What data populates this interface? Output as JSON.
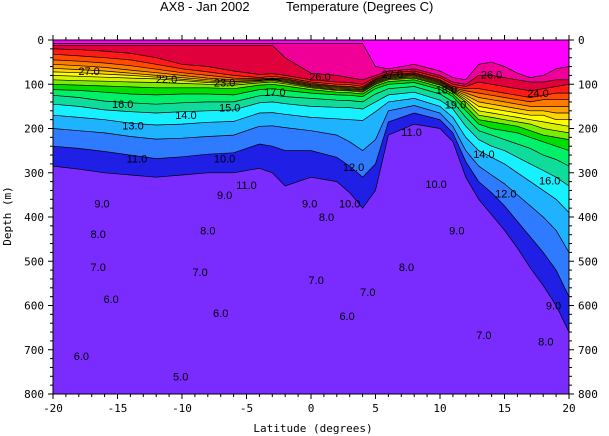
{
  "chart_data": {
    "type": "heatmap",
    "subtype": "filled-contour",
    "title": "AX8 - Jan 2002",
    "subtitle": "Temperature (Degrees C)",
    "xlabel": "Latitude (degrees)",
    "ylabel": "Depth (m)",
    "xlim": [
      -20,
      20
    ],
    "ylim": [
      0,
      800
    ],
    "y_inverted": true,
    "x_ticks": [
      -20,
      -15,
      -10,
      -5,
      0,
      5,
      10,
      15,
      20
    ],
    "y_ticks": [
      0,
      100,
      200,
      300,
      400,
      500,
      600,
      700,
      800
    ],
    "x_tick_labels": [
      "-20",
      "-15",
      "-10",
      "-5",
      "0",
      "5",
      "10",
      "15",
      "20"
    ],
    "y_tick_labels": [
      "0",
      "100",
      "200",
      "300",
      "400",
      "500",
      "600",
      "700",
      "800"
    ],
    "grid": false,
    "contour_levels": [
      5,
      6,
      7,
      8,
      9,
      10,
      11,
      12,
      13,
      14,
      15,
      16,
      17,
      18,
      19,
      20,
      21,
      22,
      23,
      24,
      25,
      26,
      27,
      28
    ],
    "color_bands": [
      {
        "min": 4,
        "max": 10,
        "color": "#7a2cff"
      },
      {
        "min": 10,
        "max": 11,
        "color": "#1f1fe6"
      },
      {
        "min": 11,
        "max": 12,
        "color": "#2f7bff"
      },
      {
        "min": 12,
        "max": 13,
        "color": "#1fb3ff"
      },
      {
        "min": 13,
        "max": 14,
        "color": "#17f0ff"
      },
      {
        "min": 14,
        "max": 15,
        "color": "#0fdc9a"
      },
      {
        "min": 15,
        "max": 16,
        "color": "#00f06a"
      },
      {
        "min": 16,
        "max": 17,
        "color": "#00dd00"
      },
      {
        "min": 17,
        "max": 18,
        "color": "#7aee00"
      },
      {
        "min": 18,
        "max": 19,
        "color": "#d7f200"
      },
      {
        "min": 19,
        "max": 20,
        "color": "#ffff00"
      },
      {
        "min": 20,
        "max": 21,
        "color": "#ffd200"
      },
      {
        "min": 21,
        "max": 22,
        "color": "#ffa200"
      },
      {
        "min": 22,
        "max": 23,
        "color": "#ff7a00"
      },
      {
        "min": 23,
        "max": 24,
        "color": "#ff4a00"
      },
      {
        "min": 24,
        "max": 25,
        "color": "#ff1a1a"
      },
      {
        "min": 25,
        "max": 26,
        "color": "#e0003c"
      },
      {
        "min": 26,
        "max": 27,
        "color": "#f00096"
      },
      {
        "min": 27,
        "max": 30,
        "color": "#ff00ff"
      }
    ],
    "isotherm_depths": {
      "latitudes": [
        -20,
        -18,
        -16,
        -14,
        -12,
        -10,
        -8,
        -6,
        -4,
        -3,
        -2,
        0,
        2,
        3,
        4,
        5,
        6,
        8,
        10,
        11,
        12,
        13,
        14,
        15,
        16,
        17,
        18,
        19,
        20
      ],
      "t27": [
        8,
        8,
        8,
        8,
        8,
        8,
        8,
        8,
        8,
        8,
        8,
        8,
        8,
        8,
        8,
        60,
        65,
        55,
        70,
        85,
        90,
        55,
        50,
        60,
        75,
        85,
        80,
        65,
        60
      ],
      "t26": [
        12,
        12,
        12,
        12,
        12,
        12,
        12,
        12,
        12,
        12,
        40,
        75,
        80,
        85,
        90,
        80,
        70,
        65,
        80,
        95,
        100,
        80,
        80,
        85,
        90,
        95,
        95,
        90,
        90
      ],
      "t25": [
        20,
        22,
        25,
        30,
        40,
        55,
        60,
        70,
        78,
        76,
        80,
        90,
        95,
        96,
        100,
        85,
        75,
        70,
        85,
        100,
        105,
        95,
        100,
        105,
        110,
        115,
        110,
        105,
        100
      ],
      "t24": [
        32,
        36,
        40,
        45,
        55,
        65,
        72,
        80,
        85,
        82,
        85,
        95,
        100,
        101,
        105,
        88,
        78,
        74,
        90,
        105,
        110,
        110,
        115,
        120,
        125,
        130,
        125,
        120,
        120
      ],
      "t23": [
        45,
        48,
        52,
        58,
        66,
        74,
        80,
        86,
        88,
        86,
        88,
        98,
        104,
        105,
        108,
        90,
        80,
        76,
        92,
        108,
        115,
        120,
        125,
        130,
        135,
        140,
        135,
        135,
        135
      ],
      "t22": [
        55,
        58,
        62,
        68,
        74,
        80,
        86,
        90,
        90,
        88,
        90,
        100,
        106,
        107,
        110,
        92,
        82,
        78,
        94,
        110,
        120,
        130,
        135,
        140,
        145,
        150,
        150,
        150,
        150
      ],
      "t21": [
        64,
        67,
        70,
        75,
        80,
        85,
        90,
        93,
        91,
        89,
        92,
        102,
        108,
        109,
        112,
        94,
        84,
        80,
        96,
        112,
        125,
        140,
        145,
        150,
        155,
        160,
        160,
        165,
        165
      ],
      "t20": [
        72,
        74,
        77,
        80,
        84,
        89,
        93,
        95,
        92,
        90,
        94,
        104,
        110,
        111,
        114,
        96,
        86,
        82,
        98,
        114,
        130,
        150,
        155,
        160,
        165,
        170,
        170,
        180,
        180
      ],
      "t19": [
        80,
        82,
        84,
        86,
        88,
        92,
        96,
        98,
        94,
        92,
        96,
        106,
        112,
        113,
        116,
        98,
        88,
        84,
        100,
        116,
        135,
        160,
        165,
        170,
        175,
        180,
        185,
        190,
        195
      ],
      "t18": [
        90,
        92,
        93,
        95,
        96,
        98,
        100,
        102,
        97,
        95,
        99,
        108,
        114,
        115,
        118,
        100,
        90,
        86,
        102,
        118,
        140,
        170,
        175,
        180,
        185,
        190,
        200,
        205,
        210
      ],
      "t17": [
        100,
        102,
        104,
        106,
        108,
        108,
        108,
        110,
        102,
        100,
        104,
        112,
        118,
        119,
        122,
        104,
        94,
        90,
        106,
        122,
        150,
        180,
        185,
        190,
        195,
        205,
        215,
        220,
        225
      ],
      "t16": [
        112,
        114,
        118,
        122,
        124,
        122,
        122,
        124,
        112,
        110,
        114,
        120,
        124,
        125,
        128,
        110,
        100,
        96,
        112,
        128,
        160,
        190,
        200,
        205,
        210,
        220,
        230,
        240,
        250
      ],
      "t15": [
        125,
        130,
        138,
        142,
        145,
        142,
        140,
        140,
        126,
        124,
        128,
        132,
        136,
        137,
        140,
        122,
        110,
        105,
        122,
        140,
        175,
        205,
        215,
        225,
        235,
        245,
        260,
        270,
        285
      ],
      "t14": [
        145,
        150,
        158,
        162,
        165,
        162,
        160,
        158,
        142,
        140,
        144,
        150,
        152,
        153,
        156,
        140,
        124,
        118,
        136,
        156,
        195,
        225,
        240,
        250,
        265,
        280,
        295,
        310,
        330
      ],
      "t13": [
        170,
        175,
        180,
        188,
        192,
        190,
        186,
        184,
        165,
        164,
        168,
        175,
        178,
        180,
        182,
        162,
        140,
        132,
        150,
        175,
        220,
        250,
        265,
        280,
        300,
        320,
        340,
        360,
        390
      ],
      "t12": [
        200,
        205,
        210,
        218,
        224,
        222,
        218,
        215,
        195,
        194,
        198,
        205,
        215,
        230,
        250,
        225,
        160,
        148,
        165,
        195,
        250,
        285,
        305,
        325,
        350,
        375,
        400,
        430,
        480
      ],
      "t11": [
        240,
        245,
        252,
        260,
        268,
        264,
        258,
        255,
        235,
        240,
        250,
        250,
        265,
        285,
        310,
        280,
        185,
        165,
        180,
        210,
        275,
        320,
        345,
        375,
        410,
        445,
        480,
        520,
        580
      ],
      "t10": [
        285,
        292,
        300,
        305,
        310,
        305,
        300,
        300,
        290,
        300,
        330,
        310,
        320,
        345,
        380,
        340,
        215,
        190,
        200,
        230,
        310,
        360,
        395,
        430,
        470,
        515,
        555,
        600,
        660
      ]
    },
    "contour_labels": [
      {
        "text": "27.0",
        "x": -17.2,
        "y": 70
      },
      {
        "text": "22.0",
        "x": -11.2,
        "y": 88
      },
      {
        "text": "23.0",
        "x": -6.7,
        "y": 96
      },
      {
        "text": "17.0",
        "x": -2.8,
        "y": 117
      },
      {
        "text": "26.0",
        "x": 0.7,
        "y": 83
      },
      {
        "text": "27.0",
        "x": 6.3,
        "y": 77
      },
      {
        "text": "26.0",
        "x": 14.0,
        "y": 78
      },
      {
        "text": "24.0",
        "x": 17.6,
        "y": 120
      },
      {
        "text": "18.0",
        "x": 10.5,
        "y": 112
      },
      {
        "text": "19.0",
        "x": 11.2,
        "y": 146
      },
      {
        "text": "16.0",
        "x": -14.6,
        "y": 145
      },
      {
        "text": "14.0",
        "x": -9.7,
        "y": 170
      },
      {
        "text": "15.0",
        "x": -6.3,
        "y": 153
      },
      {
        "text": "13.0",
        "x": -13.8,
        "y": 193
      },
      {
        "text": "11.0",
        "x": -13.5,
        "y": 268
      },
      {
        "text": "10.0",
        "x": -6.7,
        "y": 268
      },
      {
        "text": "11.0",
        "x": -5.0,
        "y": 328
      },
      {
        "text": "12.0",
        "x": 3.3,
        "y": 287
      },
      {
        "text": "11.0",
        "x": 7.8,
        "y": 208
      },
      {
        "text": "14.0",
        "x": 13.4,
        "y": 258
      },
      {
        "text": "12.0",
        "x": 15.1,
        "y": 347
      },
      {
        "text": "16.0",
        "x": 18.5,
        "y": 318
      },
      {
        "text": "10.0",
        "x": 9.7,
        "y": 325
      },
      {
        "text": "9.0",
        "x": -6.7,
        "y": 350
      },
      {
        "text": "9.0",
        "x": -0.1,
        "y": 370
      },
      {
        "text": "8.0",
        "x": 1.2,
        "y": 400
      },
      {
        "text": "10.0",
        "x": 3.0,
        "y": 370
      },
      {
        "text": "9.0",
        "x": -16.2,
        "y": 370
      },
      {
        "text": "8.0",
        "x": -16.5,
        "y": 438
      },
      {
        "text": "8.0",
        "x": -8.0,
        "y": 430
      },
      {
        "text": "9.0",
        "x": 11.3,
        "y": 430
      },
      {
        "text": "7.0",
        "x": -16.5,
        "y": 513
      },
      {
        "text": "7.0",
        "x": -8.6,
        "y": 524
      },
      {
        "text": "7.0",
        "x": 0.4,
        "y": 542
      },
      {
        "text": "8.0",
        "x": 7.4,
        "y": 513
      },
      {
        "text": "7.0",
        "x": 4.4,
        "y": 570
      },
      {
        "text": "6.0",
        "x": -15.5,
        "y": 585
      },
      {
        "text": "6.0",
        "x": -7.0,
        "y": 617
      },
      {
        "text": "6.0",
        "x": 2.8,
        "y": 624
      },
      {
        "text": "7.0",
        "x": 13.4,
        "y": 667
      },
      {
        "text": "9.0",
        "x": 18.8,
        "y": 600
      },
      {
        "text": "8.0",
        "x": 18.2,
        "y": 681
      },
      {
        "text": "6.0",
        "x": -17.8,
        "y": 714
      },
      {
        "text": "5.0",
        "x": -10.1,
        "y": 761
      }
    ]
  }
}
